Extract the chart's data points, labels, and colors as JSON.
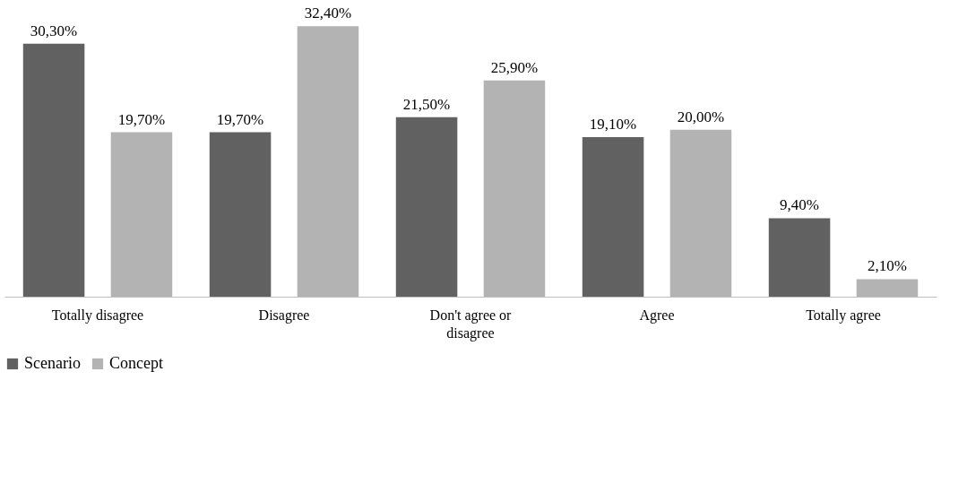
{
  "chart_data": {
    "type": "bar",
    "categories": [
      "Totally disagree",
      "Disagree",
      "Don't agree or disagree",
      "Agree",
      "Totally agree"
    ],
    "series": [
      {
        "name": "Scenario",
        "color": "#616161",
        "values": [
          30.3,
          19.7,
          21.5,
          19.1,
          9.4
        ],
        "value_labels": [
          "30,30%",
          "19,70%",
          "21,50%",
          "19,10%",
          "9,40%"
        ]
      },
      {
        "name": "Concept",
        "color": "#b3b3b3",
        "values": [
          19.7,
          32.4,
          25.9,
          20.0,
          2.1
        ],
        "value_labels": [
          "19,70%",
          "32,40%",
          "25,90%",
          "20,00%",
          "2,10%"
        ]
      }
    ],
    "legend": "bottom",
    "grid": false
  }
}
